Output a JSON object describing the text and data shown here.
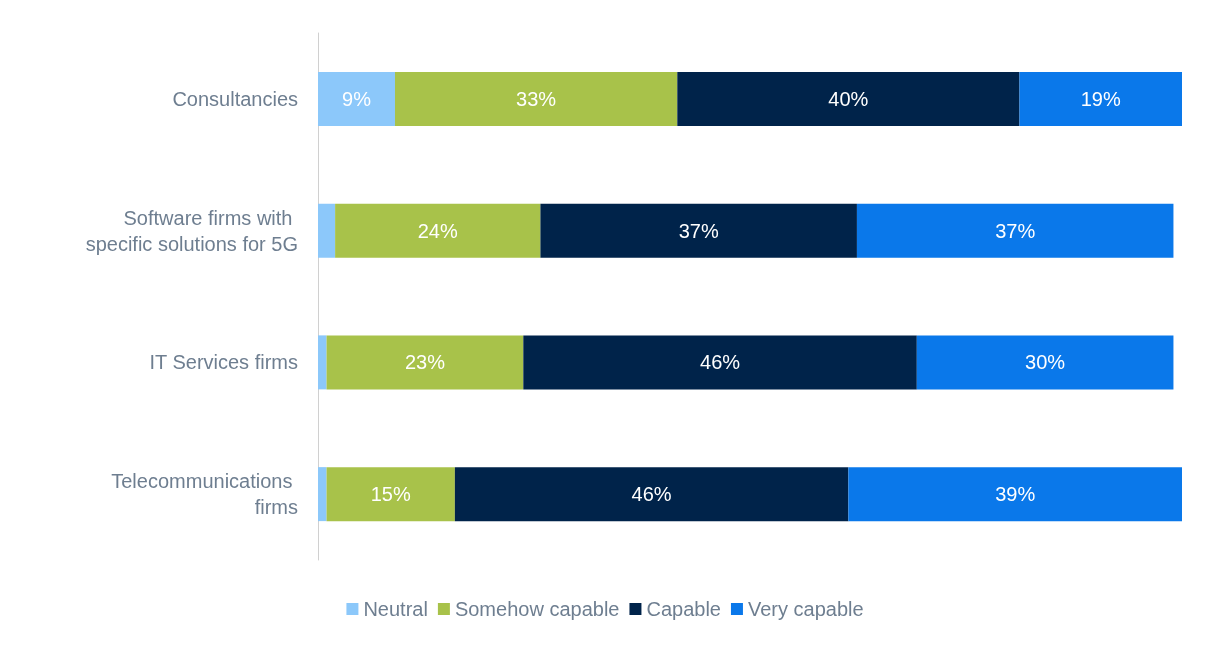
{
  "chart_data": {
    "type": "bar",
    "orientation": "horizontal",
    "stacked": true,
    "legend": "bottom",
    "tick_labels": "y",
    "categories": [
      "Consultancies",
      "Software firms with specific solutions for 5G",
      "IT Services firms",
      "Telecommunications firms"
    ],
    "series": [
      {
        "name": "Neutral",
        "color": "#8cc8fa",
        "values": [
          9,
          2,
          1,
          1
        ],
        "value_labels": [
          "9%",
          null,
          null,
          null
        ]
      },
      {
        "name": "Somehow capable",
        "color": "#a8c24a",
        "values": [
          33,
          24,
          23,
          15
        ],
        "value_labels": [
          "33%",
          "24%",
          "23%",
          "15%"
        ]
      },
      {
        "name": "Capable",
        "color": "#00234a",
        "values": [
          40,
          37,
          46,
          46
        ],
        "value_labels": [
          "40%",
          "37%",
          "46%",
          "46%"
        ]
      },
      {
        "name": "Very capable",
        "color": "#0a78ea",
        "values": [
          19,
          37,
          30,
          39
        ],
        "value_labels": [
          "19%",
          "37%",
          "30%",
          "39%"
        ]
      }
    ]
  }
}
